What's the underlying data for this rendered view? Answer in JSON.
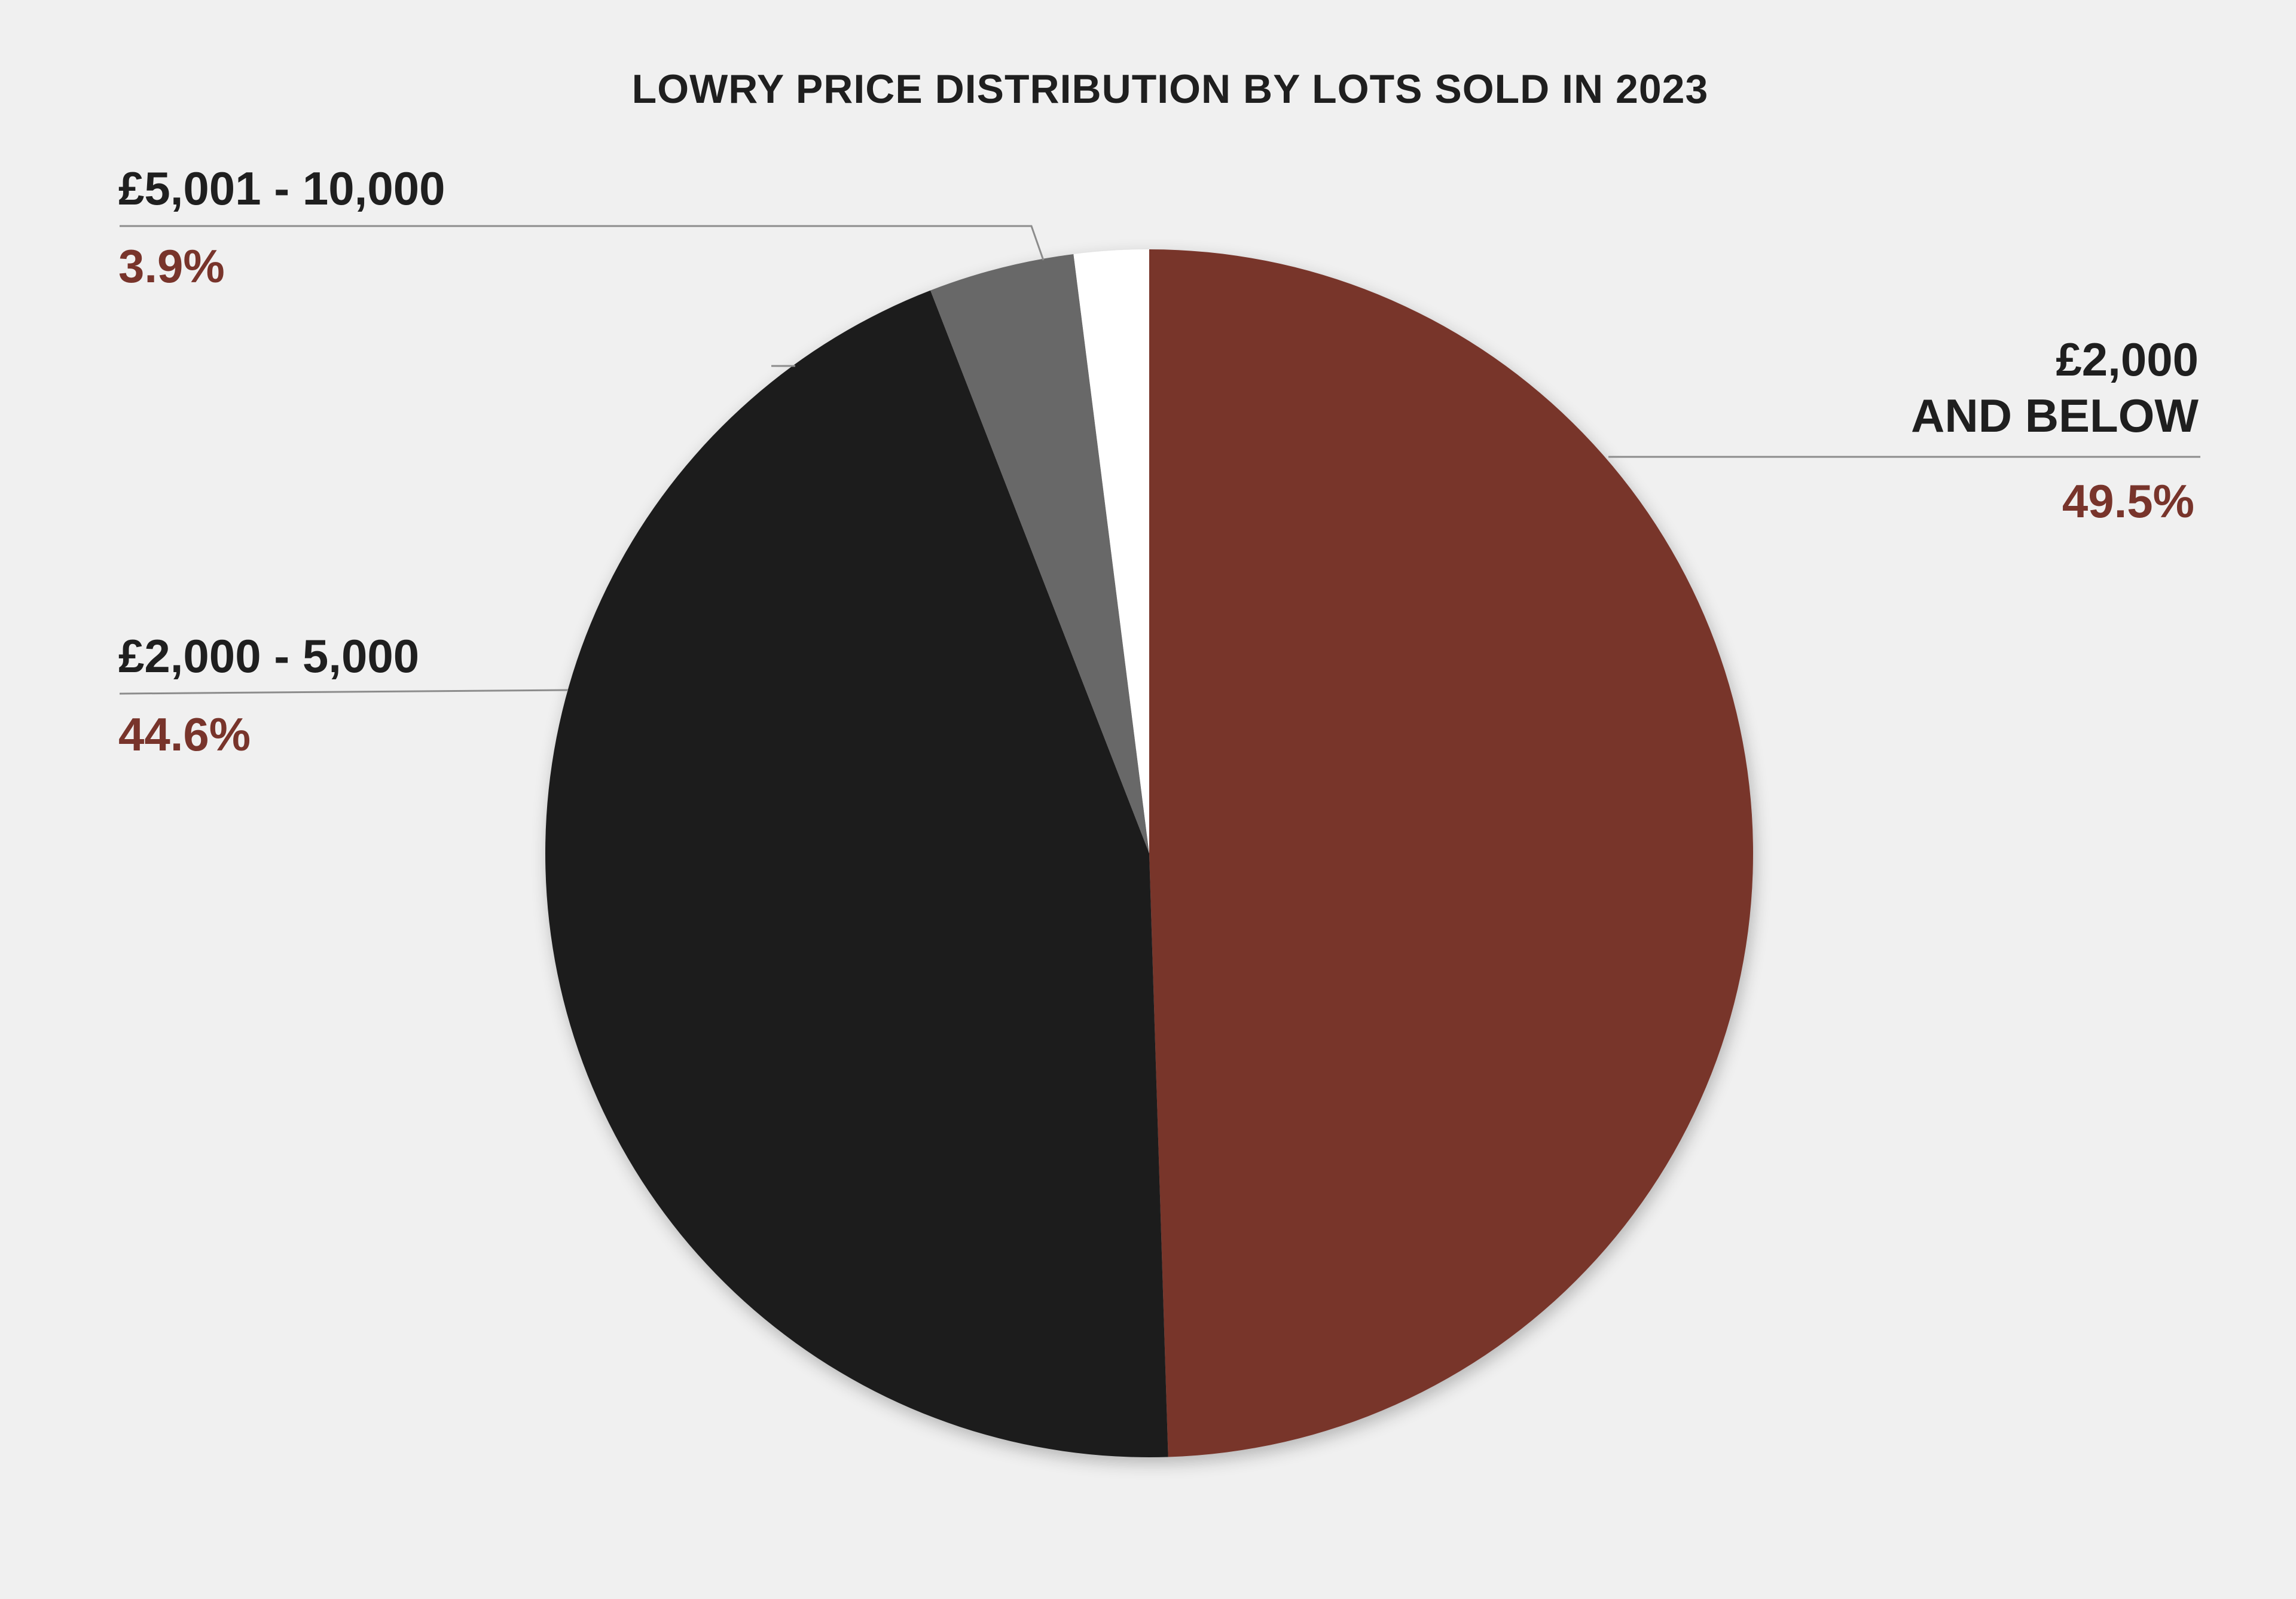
{
  "chart_data": {
    "type": "pie",
    "title": "LOWRY PRICE DISTRIBUTION BY LOTS SOLD IN 2023",
    "slices": [
      {
        "label": "£2,000 AND BELOW",
        "label_lines": [
          "£2,000",
          "AND BELOW"
        ],
        "value": 49.5,
        "value_label": "49.5%",
        "color": "#78342b"
      },
      {
        "label": "£2,000 - 5,000",
        "label_lines": [
          "£2,000 - 5,000"
        ],
        "value": 44.6,
        "value_label": "44.6%",
        "color": "#1e1e1e"
      },
      {
        "label": "£5,001 - 10,000",
        "label_lines": [
          "£5,001 - 10,000"
        ],
        "value": 3.9,
        "value_label": "3.9%",
        "color": "#676767"
      },
      {
        "label": "",
        "label_lines": [],
        "value": 2.0,
        "value_label": "",
        "color": "#ffffff"
      }
    ],
    "start_angle": "top",
    "direction": "clockwise"
  },
  "colors": {
    "background": "#f0f0f0",
    "accent": "#78342b",
    "text": "#1f1f1f",
    "leader_line": "#8c8c8c"
  }
}
